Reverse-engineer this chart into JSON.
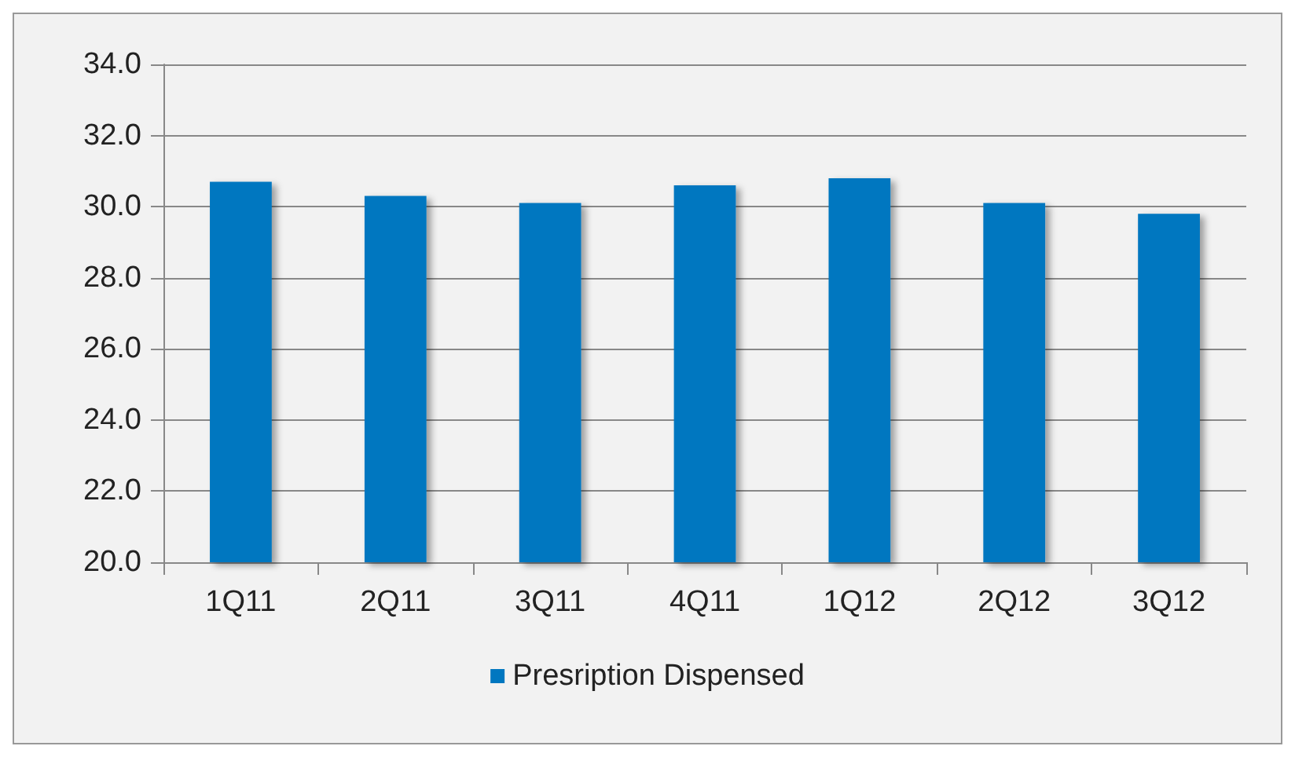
{
  "chart_data": {
    "type": "bar",
    "categories": [
      "1Q11",
      "2Q11",
      "3Q11",
      "4Q11",
      "1Q12",
      "2Q12",
      "3Q12"
    ],
    "series": [
      {
        "name": "Presription Dispensed",
        "color": "#0077c0",
        "values": [
          30.7,
          30.3,
          30.1,
          30.6,
          30.8,
          30.1,
          29.8
        ]
      }
    ],
    "ylim": [
      20,
      34
    ],
    "yticks": [
      {
        "value": 20,
        "label": "20.0"
      },
      {
        "value": 22,
        "label": "22.0"
      },
      {
        "value": 24,
        "label": "24.0"
      },
      {
        "value": 26,
        "label": "26.0"
      },
      {
        "value": 28,
        "label": "28.0"
      },
      {
        "value": 30,
        "label": "30.0"
      },
      {
        "value": 32,
        "label": "32.0"
      },
      {
        "value": 34,
        "label": "34.0"
      }
    ],
    "grid": "y",
    "legend": "bottom"
  }
}
